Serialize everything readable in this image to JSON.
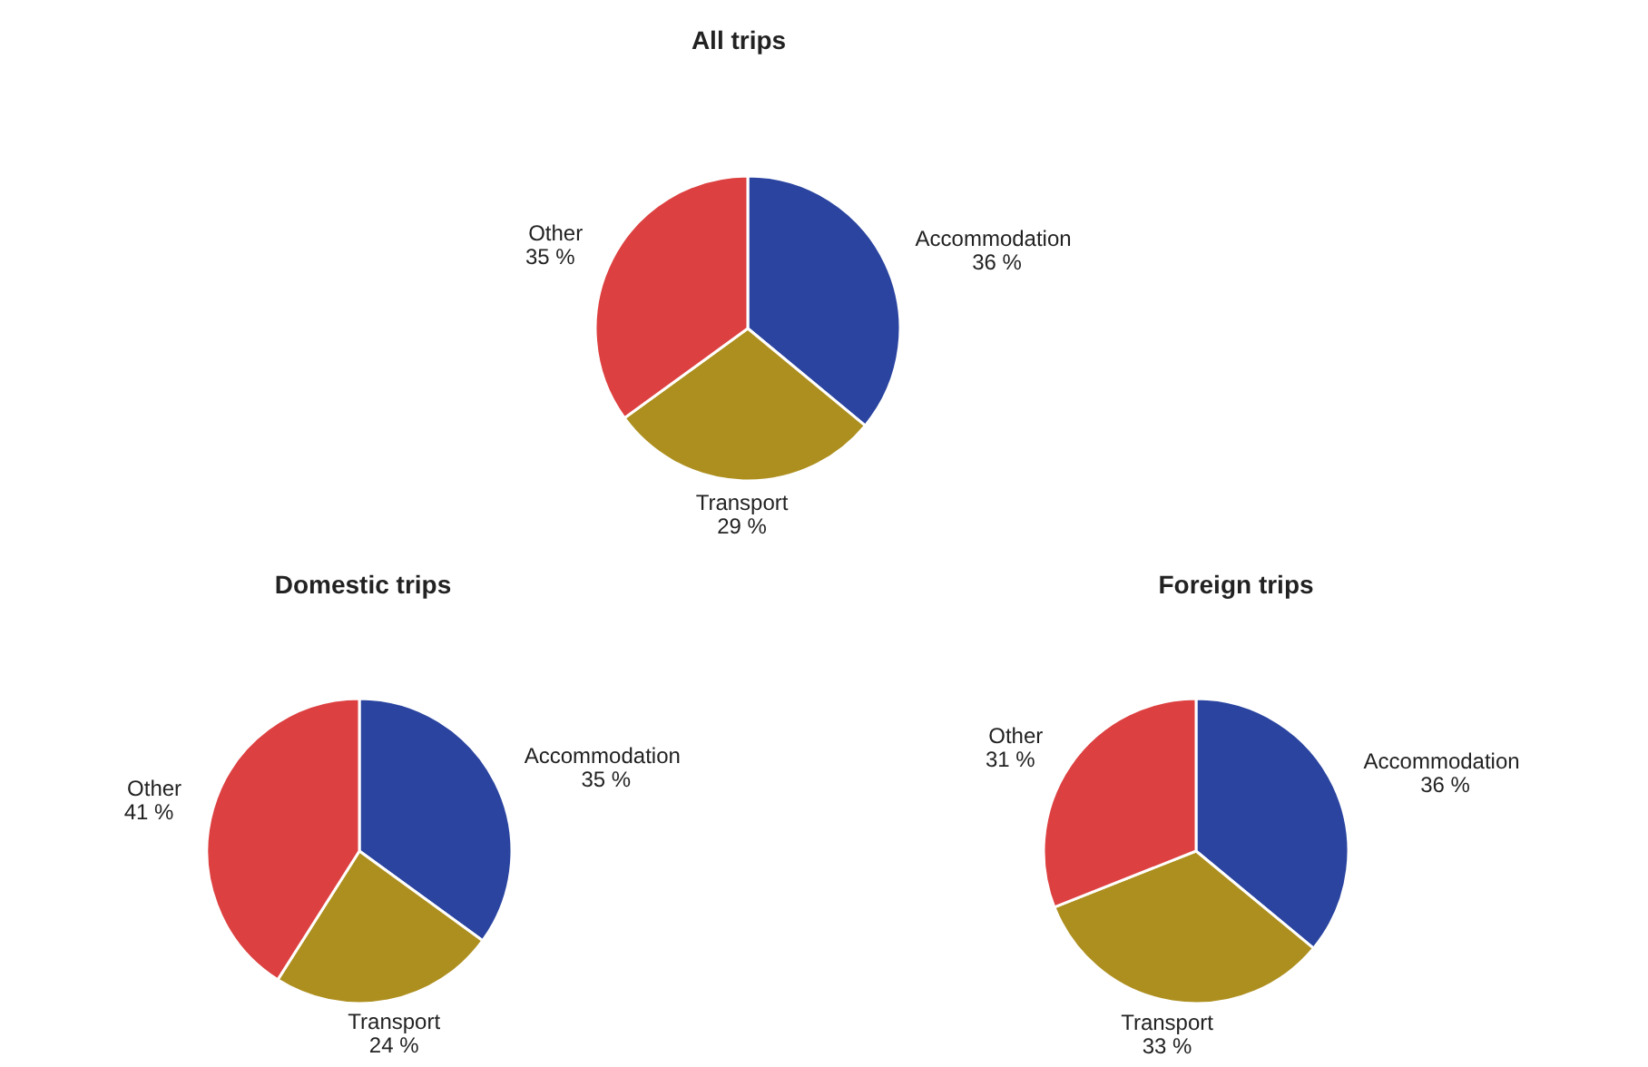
{
  "chart_data": [
    {
      "type": "pie",
      "title": "All trips",
      "categories": [
        "Accommodation",
        "Transport",
        "Other"
      ],
      "values": [
        36,
        29,
        35
      ],
      "colors": [
        "#2a44a0",
        "#ad8f1f",
        "#dd4040"
      ],
      "value_labels": [
        "36 %",
        "29 %",
        "35 %"
      ]
    },
    {
      "type": "pie",
      "title": "Domestic trips",
      "categories": [
        "Accommodation",
        "Transport",
        "Other"
      ],
      "values": [
        35,
        24,
        41
      ],
      "colors": [
        "#2a44a0",
        "#ad8f1f",
        "#dd4040"
      ],
      "value_labels": [
        "35 %",
        "24 %",
        "41 %"
      ]
    },
    {
      "type": "pie",
      "title": "Foreign trips",
      "categories": [
        "Accommodation",
        "Transport",
        "Other"
      ],
      "values": [
        36,
        33,
        31
      ],
      "colors": [
        "#2a44a0",
        "#ad8f1f",
        "#dd4040"
      ],
      "value_labels": [
        "36 %",
        "33 %",
        "31 %"
      ]
    }
  ]
}
